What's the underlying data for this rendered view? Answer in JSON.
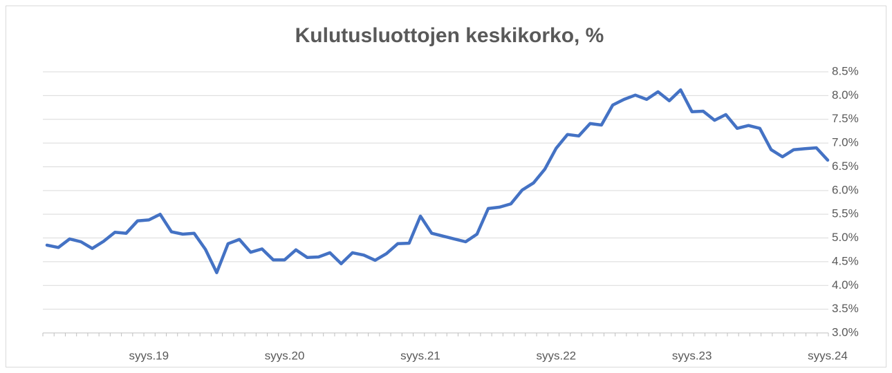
{
  "chart_data": {
    "type": "line",
    "title": "Kulutusluottojen keskikorko, %",
    "categories": [
      null,
      null,
      null,
      null,
      null,
      null,
      null,
      null,
      null,
      "syys.19",
      null,
      null,
      null,
      null,
      null,
      null,
      null,
      null,
      null,
      null,
      null,
      "syys.20",
      null,
      null,
      null,
      null,
      null,
      null,
      null,
      null,
      null,
      null,
      null,
      "syys.21",
      null,
      null,
      null,
      null,
      null,
      null,
      null,
      null,
      null,
      null,
      null,
      "syys.22",
      null,
      null,
      null,
      null,
      null,
      null,
      null,
      null,
      null,
      null,
      null,
      "syys.23",
      null,
      null,
      null,
      null,
      null,
      null,
      null,
      null,
      null,
      null,
      null,
      "syys.24"
    ],
    "series": [
      {
        "name": "Kulutusluottojen keskikorko",
        "color": "#4472c4",
        "values": [
          4.85,
          4.8,
          4.98,
          4.92,
          4.78,
          4.93,
          5.12,
          5.1,
          5.36,
          5.38,
          5.5,
          5.13,
          5.08,
          5.1,
          4.76,
          4.27,
          4.88,
          4.97,
          4.7,
          4.77,
          4.54,
          4.54,
          4.75,
          4.59,
          4.6,
          4.69,
          4.46,
          4.69,
          4.64,
          4.53,
          4.67,
          4.88,
          4.89,
          5.46,
          5.1,
          5.04,
          4.98,
          4.92,
          5.08,
          5.62,
          5.65,
          5.72,
          6.01,
          6.16,
          6.45,
          6.89,
          7.18,
          7.15,
          7.41,
          7.38,
          7.8,
          7.92,
          8.01,
          7.92,
          8.08,
          7.89,
          8.12,
          7.66,
          7.67,
          7.48,
          7.6,
          7.31,
          7.37,
          7.31,
          6.86,
          6.71,
          6.86,
          6.88,
          6.9,
          6.64
        ]
      }
    ],
    "ylim": [
      3.0,
      8.5
    ],
    "yticks": [
      {
        "value": 3.0,
        "label": "3.0%"
      },
      {
        "value": 3.5,
        "label": "3.5%"
      },
      {
        "value": 4.0,
        "label": "4.0%"
      },
      {
        "value": 4.5,
        "label": "4.5%"
      },
      {
        "value": 5.0,
        "label": "5.0%"
      },
      {
        "value": 5.5,
        "label": "5.5%"
      },
      {
        "value": 6.0,
        "label": "6.0%"
      },
      {
        "value": 6.5,
        "label": "6.5%"
      },
      {
        "value": 7.0,
        "label": "7.0%"
      },
      {
        "value": 7.5,
        "label": "7.5%"
      },
      {
        "value": 8.0,
        "label": "8.0%"
      },
      {
        "value": 8.5,
        "label": "8.5%"
      }
    ],
    "grid": true
  }
}
